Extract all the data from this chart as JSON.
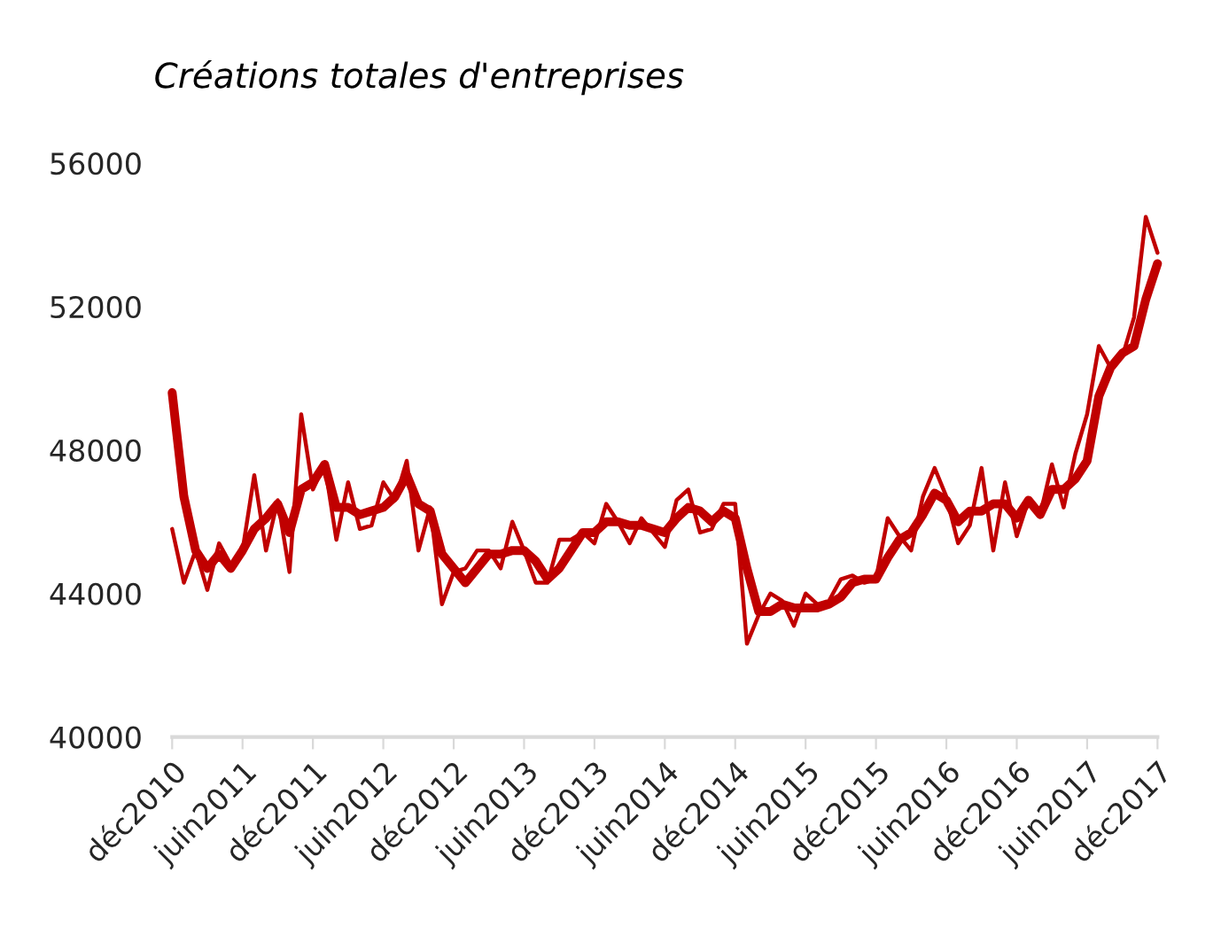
{
  "chart_data": {
    "type": "line",
    "title": "Créations totales d'entreprises",
    "categories": [
      "déc2010",
      null,
      null,
      null,
      null,
      null,
      "juin2011",
      null,
      null,
      null,
      null,
      null,
      "déc2011",
      null,
      null,
      null,
      null,
      null,
      "juin2012",
      null,
      null,
      null,
      null,
      null,
      "déc2012",
      null,
      null,
      null,
      null,
      null,
      "juin2013",
      null,
      null,
      null,
      null,
      null,
      "déc2013",
      null,
      null,
      null,
      null,
      null,
      "juin2014",
      null,
      null,
      null,
      null,
      null,
      "déc2014",
      null,
      null,
      null,
      null,
      null,
      "juin2015",
      null,
      null,
      null,
      null,
      null,
      "déc2015",
      null,
      null,
      null,
      null,
      null,
      "juin2016",
      null,
      null,
      null,
      null,
      null,
      "déc2016",
      null,
      null,
      null,
      null,
      null,
      "juin2017",
      null,
      null,
      null,
      null,
      null,
      "déc2017"
    ],
    "series": [
      {
        "color": "#c00000",
        "values": [
          45800,
          44300,
          45200,
          44100,
          45400,
          44800,
          45200,
          47300,
          45200,
          46600,
          44600,
          49000,
          46900,
          47600,
          45500,
          47100,
          45800,
          45900,
          47100,
          46600,
          47700,
          45200,
          46400,
          43700,
          44600,
          44700,
          45200,
          45200,
          44700,
          46000,
          45200,
          44300,
          44300,
          45500,
          45500,
          45700,
          45400,
          46500,
          46000,
          45400,
          46100,
          45700,
          45300,
          46600,
          46900,
          45700,
          45800,
          46500,
          46500,
          42600,
          43400,
          44000,
          43800,
          43100,
          44000,
          43700,
          43800,
          44400,
          44500,
          44300,
          44400,
          46100,
          45600,
          45200,
          46700,
          47500,
          46700,
          45400,
          45900,
          47500,
          45200,
          47100,
          45600,
          46600,
          46200,
          47600,
          46400,
          47900,
          49000,
          50900,
          50300,
          50600,
          51700,
          54500,
          53500
        ]
      },
      {
        "color": "#c00000",
        "values": [
          49600,
          46700,
          45200,
          44700,
          45100,
          44700,
          45200,
          45800,
          46100,
          46500,
          45700,
          46900,
          47100,
          47600,
          46400,
          46400,
          46200,
          46300,
          46400,
          46700,
          47300,
          46500,
          46300,
          45100,
          44700,
          44300,
          44700,
          45100,
          45100,
          45200,
          45200,
          44900,
          44400,
          44700,
          45200,
          45700,
          45700,
          46000,
          46000,
          45900,
          45900,
          45800,
          45700,
          46100,
          46400,
          46300,
          46000,
          46300,
          46100,
          44700,
          43500,
          43500,
          43700,
          43600,
          43600,
          43600,
          43700,
          43900,
          44300,
          44400,
          44400,
          45000,
          45500,
          45700,
          46200,
          46800,
          46600,
          46000,
          46300,
          46300,
          46500,
          46500,
          46100,
          46600,
          46200,
          46900,
          46900,
          47200,
          47700,
          49500,
          50300,
          50700,
          50900,
          52200,
          53200
        ]
      }
    ],
    "ylim": [
      40000,
      56000
    ],
    "yticks": [
      40000,
      44000,
      48000,
      52000,
      56000
    ],
    "grid": false,
    "marker": "none",
    "line_style": "solid"
  }
}
